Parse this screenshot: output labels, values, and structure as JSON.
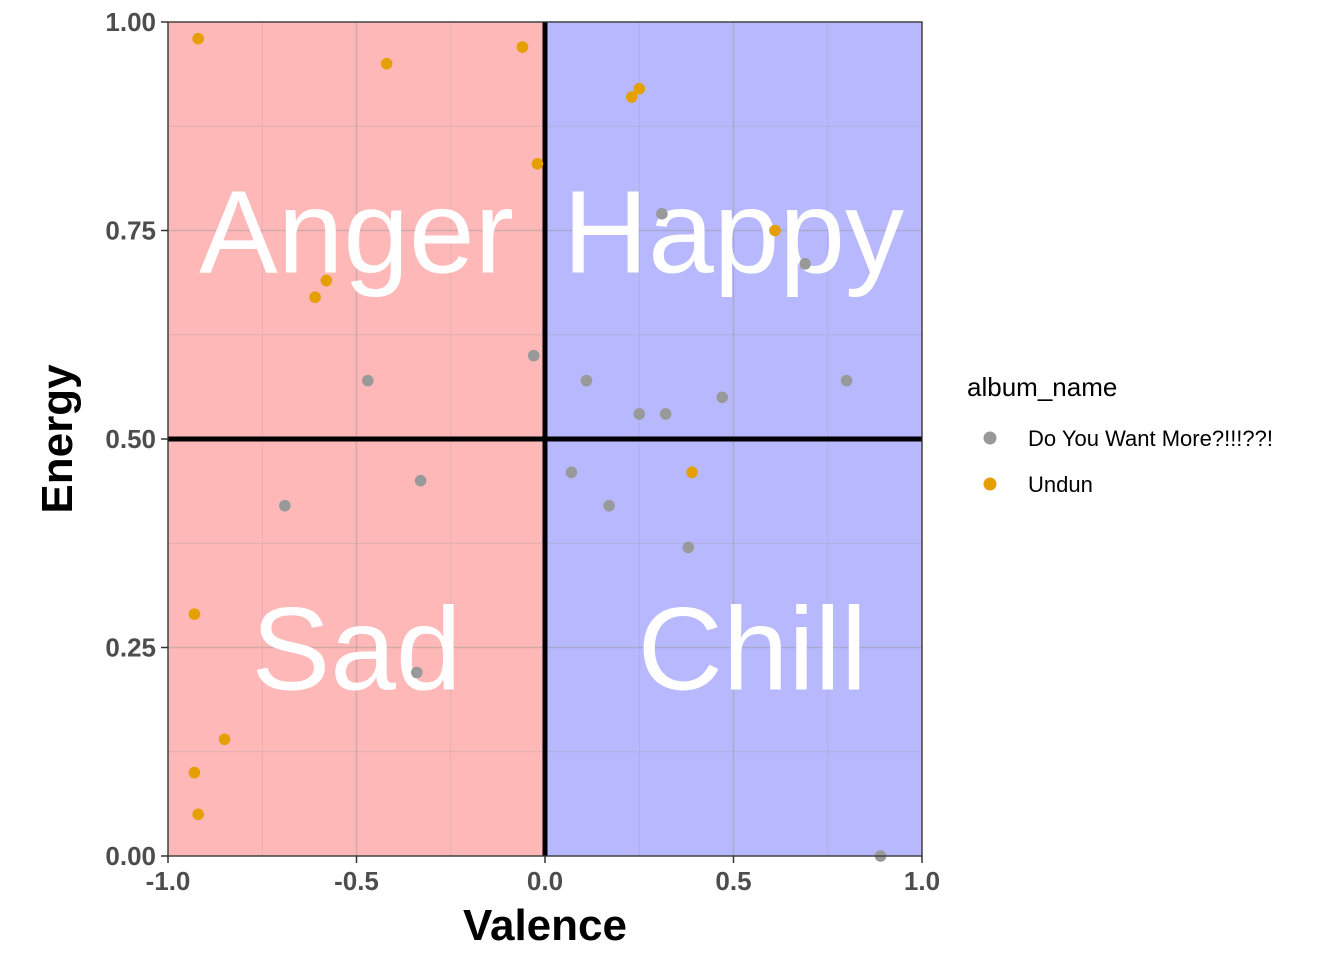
{
  "chart_data": {
    "type": "scatter",
    "xlabel": "Valence",
    "ylabel": "Energy",
    "xlim": [
      -1.0,
      1.0
    ],
    "ylim": [
      0.0,
      1.0
    ],
    "x_ticks": [
      "-1.0",
      "-0.5",
      "0.0",
      "0.5",
      "1.0"
    ],
    "x_tick_values": [
      -1.0,
      -0.5,
      0.0,
      0.5,
      1.0
    ],
    "y_ticks": [
      "0.00",
      "0.25",
      "0.50",
      "0.75",
      "1.00"
    ],
    "y_tick_values": [
      0.0,
      0.25,
      0.5,
      0.75,
      1.0
    ],
    "grid": true,
    "reference_lines": {
      "x": 0.0,
      "y": 0.5
    },
    "quadrants": [
      {
        "label": "Anger",
        "x": -0.5,
        "y": 0.75,
        "fill": "#ff0000"
      },
      {
        "label": "Happy",
        "x": 0.5,
        "y": 0.75,
        "fill": "#0000ff"
      },
      {
        "label": "Sad",
        "x": -0.5,
        "y": 0.25,
        "fill": "#ff0000"
      },
      {
        "label": "Chill",
        "x": 0.55,
        "y": 0.25,
        "fill": "#0000ff"
      }
    ],
    "legend": {
      "title": "album_name",
      "position": "right",
      "entries": [
        {
          "name": "Do You Want More?!!!??!",
          "color": "#999999"
        },
        {
          "name": "Undun",
          "color": "#e69f00"
        }
      ]
    },
    "series": [
      {
        "name": "Do You Want More?!!!??!",
        "color": "#999999",
        "points": [
          [
            -0.47,
            0.57
          ],
          [
            -0.03,
            0.6
          ],
          [
            -0.69,
            0.42
          ],
          [
            -0.33,
            0.45
          ],
          [
            -0.34,
            0.22
          ],
          [
            0.31,
            0.77
          ],
          [
            0.69,
            0.71
          ],
          [
            0.11,
            0.57
          ],
          [
            0.25,
            0.53
          ],
          [
            0.32,
            0.53
          ],
          [
            0.47,
            0.55
          ],
          [
            0.8,
            0.57
          ],
          [
            0.07,
            0.46
          ],
          [
            0.17,
            0.42
          ],
          [
            0.38,
            0.37
          ],
          [
            0.89,
            0.0
          ]
        ]
      },
      {
        "name": "Undun",
        "color": "#e69f00",
        "points": [
          [
            -0.92,
            0.98
          ],
          [
            -0.42,
            0.95
          ],
          [
            -0.06,
            0.97
          ],
          [
            -0.02,
            0.83
          ],
          [
            -0.58,
            0.69
          ],
          [
            -0.61,
            0.67
          ],
          [
            0.23,
            0.91
          ],
          [
            0.25,
            0.92
          ],
          [
            0.61,
            0.75
          ],
          [
            0.39,
            0.46
          ],
          [
            -0.93,
            0.29
          ],
          [
            -0.85,
            0.14
          ],
          [
            -0.93,
            0.1
          ],
          [
            -0.92,
            0.05
          ]
        ]
      }
    ]
  }
}
